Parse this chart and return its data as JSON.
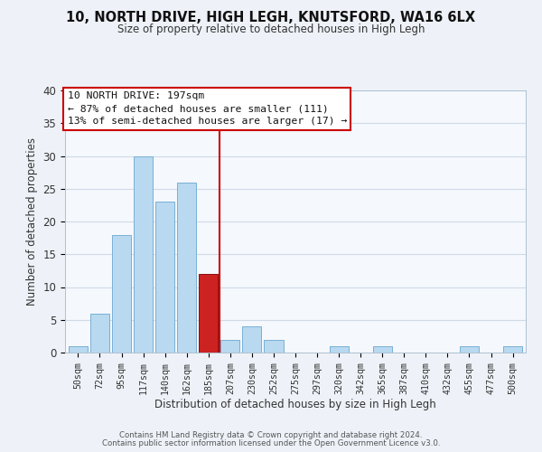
{
  "title": "10, NORTH DRIVE, HIGH LEGH, KNUTSFORD, WA16 6LX",
  "subtitle": "Size of property relative to detached houses in High Legh",
  "xlabel": "Distribution of detached houses by size in High Legh",
  "ylabel": "Number of detached properties",
  "bin_labels": [
    "50sqm",
    "72sqm",
    "95sqm",
    "117sqm",
    "140sqm",
    "162sqm",
    "185sqm",
    "207sqm",
    "230sqm",
    "252sqm",
    "275sqm",
    "297sqm",
    "320sqm",
    "342sqm",
    "365sqm",
    "387sqm",
    "410sqm",
    "432sqm",
    "455sqm",
    "477sqm",
    "500sqm"
  ],
  "bar_heights": [
    1,
    6,
    18,
    30,
    23,
    26,
    12,
    2,
    4,
    2,
    0,
    0,
    1,
    0,
    1,
    0,
    0,
    0,
    1,
    0,
    1
  ],
  "highlight_bin_index": 6,
  "bar_color": "#b8d9f0",
  "highlight_bar_color": "#cc2222",
  "bar_edge_color": "#7ab0d4",
  "highlight_edge_color": "#881111",
  "vline_color": "#cc0000",
  "annotation_title": "10 NORTH DRIVE: 197sqm",
  "annotation_line1": "← 87% of detached houses are smaller (111)",
  "annotation_line2": "13% of semi-detached houses are larger (17) →",
  "ylim": [
    0,
    40
  ],
  "yticks": [
    0,
    5,
    10,
    15,
    20,
    25,
    30,
    35,
    40
  ],
  "footer1": "Contains HM Land Registry data © Crown copyright and database right 2024.",
  "footer2": "Contains public sector information licensed under the Open Government Licence v3.0.",
  "bg_color": "#eef2f8",
  "plot_bg_color": "#f5f8fd",
  "grid_color": "#d0dae8"
}
